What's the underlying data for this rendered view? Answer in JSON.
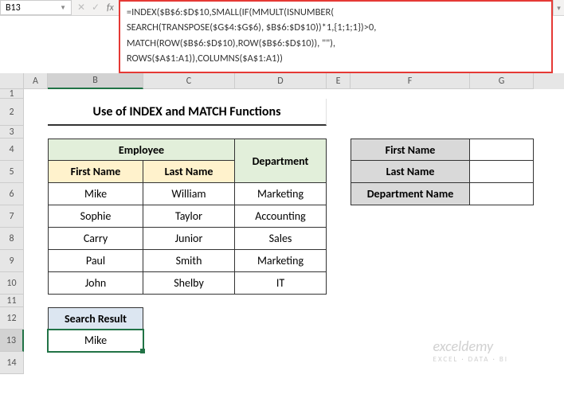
{
  "nameBox": "B13",
  "formulaLines": [
    "=INDEX($B$6:$D$10,SMALL(IF(MMULT(ISNUMBER(",
    "SEARCH(TRANSPOSE($G$4:$G$6), $B$6:$D$10))*1,{1;1;1})>0,",
    "MATCH(ROW($B$6:$D$10),ROW($B$6:$D$10)), \"\"),",
    "ROWS($A$1:A1)),COLUMNS($A$1:A1))"
  ],
  "columns": [
    "A",
    "B",
    "C",
    "D",
    "E",
    "F",
    "G"
  ],
  "selectedCol": "B",
  "rows": [
    1,
    2,
    3,
    4,
    5,
    6,
    7,
    8,
    9,
    10,
    11,
    12,
    13,
    14
  ],
  "selectedRow": 13,
  "colWidths": {
    "A": 30,
    "B": 120,
    "C": 115,
    "D": 115,
    "E": 30,
    "F": 150,
    "G": 80
  },
  "rowHeights": {
    "1": 12,
    "2": 34,
    "3": 16,
    "4": 28,
    "5": 28,
    "6": 28,
    "7": 28,
    "8": 28,
    "9": 28,
    "10": 28,
    "11": 16,
    "12": 28,
    "13": 28,
    "14": 28
  },
  "title": "Use of INDEX and MATCH Functions",
  "headers": {
    "employee": "Employee",
    "firstName": "First Name",
    "lastName": "Last Name",
    "department": "Department",
    "sideFirstName": "First Name",
    "sideLastName": "Last Name",
    "sideDept": "Department Name",
    "searchResult": "Search Result"
  },
  "data": [
    {
      "first": "Mike",
      "last": "William",
      "dept": "Marketing"
    },
    {
      "first": "Sophie",
      "last": "Taylor",
      "dept": "Accounting"
    },
    {
      "first": "Carry",
      "last": "Junior",
      "dept": "Sales"
    },
    {
      "first": "Paul",
      "last": "Smith",
      "dept": "Marketing"
    },
    {
      "first": "John",
      "last": "Shelby",
      "dept": "IT"
    }
  ],
  "resultValue": "Mike",
  "watermark": {
    "main": "exceldemy",
    "sub": "EXCEL · DATA · BI"
  },
  "colors": {
    "formulaBorder": "#e53935",
    "selection": "#217346",
    "hdrGreen": "#e2efda",
    "hdrYellow": "#fff2cc",
    "hdrGray": "#d9d9d9",
    "hdrBlue": "#dce6f1"
  }
}
